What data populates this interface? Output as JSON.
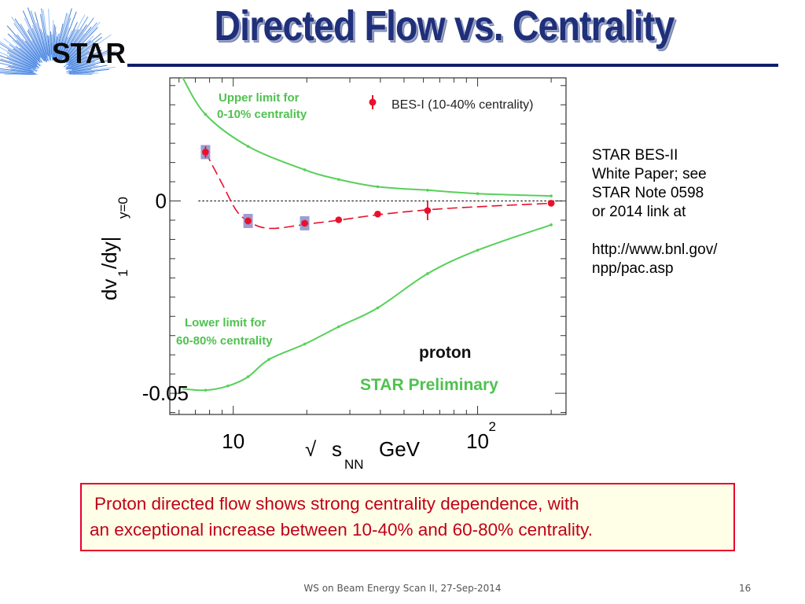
{
  "slide": {
    "title": "Directed Flow vs. Centrality",
    "logo_text": "STAR",
    "side_note": {
      "lines": [
        "STAR BES-II",
        "White Paper; see",
        "STAR Note 0598",
        "or 2014 link at"
      ],
      "url_lines": [
        "http://www.bnl.gov/",
        "npp/pac.asp"
      ]
    },
    "callout": {
      "line1": "Proton directed flow shows strong centrality dependence, with",
      "line2": "an exceptional increase between 10-40% and 60-80% centrality."
    },
    "footer": "WS on Beam Energy Scan II, 27-Sep-2014",
    "page_number": "16",
    "colors": {
      "title": "#1f2f7a",
      "rule": "#101e6b",
      "callout_border": "#e8002a",
      "callout_text": "#c00016",
      "callout_bg": "#ffffe8"
    }
  },
  "chart_data": {
    "type": "scatter",
    "x_scale": "log",
    "xlim": [
      5.5,
      230
    ],
    "ylim": [
      -0.0555,
      0.032
    ],
    "x_tick_labels": [
      {
        "value": 10,
        "base": "10",
        "exp": ""
      },
      {
        "value": 100,
        "base": "10",
        "exp": "2"
      }
    ],
    "y_tick_labels": [
      {
        "value": 0,
        "label": "0"
      },
      {
        "value": -0.05,
        "label": "-0.05"
      }
    ],
    "xlabel": {
      "prefix": "√",
      "main": "s",
      "sub": "NN",
      "unit": "GeV"
    },
    "ylabel": {
      "a": "dv",
      "sub1": "1",
      "b": "/dy|",
      "sub2": "y=0"
    },
    "zero_line": true,
    "series": [
      {
        "name": "BES-I (10-40% centrality)",
        "role": "data",
        "color": "#e8102a",
        "box_color": "#8c8cc8",
        "points": [
          {
            "x": 7.7,
            "y": 0.0127,
            "err": 0.0015,
            "box": true
          },
          {
            "x": 11.5,
            "y": -0.0052,
            "err": 0.0009,
            "box": true
          },
          {
            "x": 19.6,
            "y": -0.0058,
            "err": 0.0007,
            "box": true
          },
          {
            "x": 27,
            "y": -0.0049,
            "err": 0.0005,
            "box": false
          },
          {
            "x": 39,
            "y": -0.0034,
            "err": 0.0006,
            "box": false
          },
          {
            "x": 62.4,
            "y": -0.0025,
            "err": 0.0025,
            "box": false
          },
          {
            "x": 200,
            "y": -0.0006,
            "err": 0.0005,
            "box": false
          }
        ],
        "fit_curve": [
          [
            7.7,
            0.0127
          ],
          [
            9,
            0.0045
          ],
          [
            10.3,
            -0.0025
          ],
          [
            11.5,
            -0.0052
          ],
          [
            13,
            -0.0068
          ],
          [
            15,
            -0.0071
          ],
          [
            19.6,
            -0.0061
          ],
          [
            27,
            -0.005
          ],
          [
            39,
            -0.0036
          ],
          [
            62.4,
            -0.0023
          ],
          [
            100,
            -0.0015
          ],
          [
            200,
            -0.0006
          ]
        ]
      },
      {
        "name": "Upper limit for 0-10% centrality",
        "label_lines": [
          "Upper limit for",
          "0-10% centrality"
        ],
        "role": "upper",
        "color": "#58d05a",
        "curve": [
          [
            6.2,
            0.0321
          ],
          [
            7.7,
            0.0225
          ],
          [
            11.5,
            0.0142
          ],
          [
            19.6,
            0.0081
          ],
          [
            27,
            0.0056
          ],
          [
            39,
            0.0037
          ],
          [
            62.4,
            0.0028
          ],
          [
            100,
            0.0019
          ],
          [
            200,
            0.0013
          ]
        ]
      },
      {
        "name": "Lower limit for 60-80% centrality",
        "label_lines": [
          "Lower limit for",
          "60-80% centrality"
        ],
        "role": "lower",
        "color": "#58d05a",
        "curve": [
          [
            6.2,
            -0.0488
          ],
          [
            7.7,
            -0.0492
          ],
          [
            9.5,
            -0.0481
          ],
          [
            11.5,
            -0.0457
          ],
          [
            14,
            -0.0412
          ],
          [
            19.6,
            -0.0372
          ],
          [
            27,
            -0.0327
          ],
          [
            39,
            -0.0278
          ],
          [
            62.4,
            -0.0189
          ],
          [
            100,
            -0.0128
          ],
          [
            200,
            -0.0062
          ]
        ]
      }
    ],
    "annotations": {
      "particle": "proton",
      "preliminary": "STAR Preliminary",
      "legend_placement": "top-right"
    }
  }
}
